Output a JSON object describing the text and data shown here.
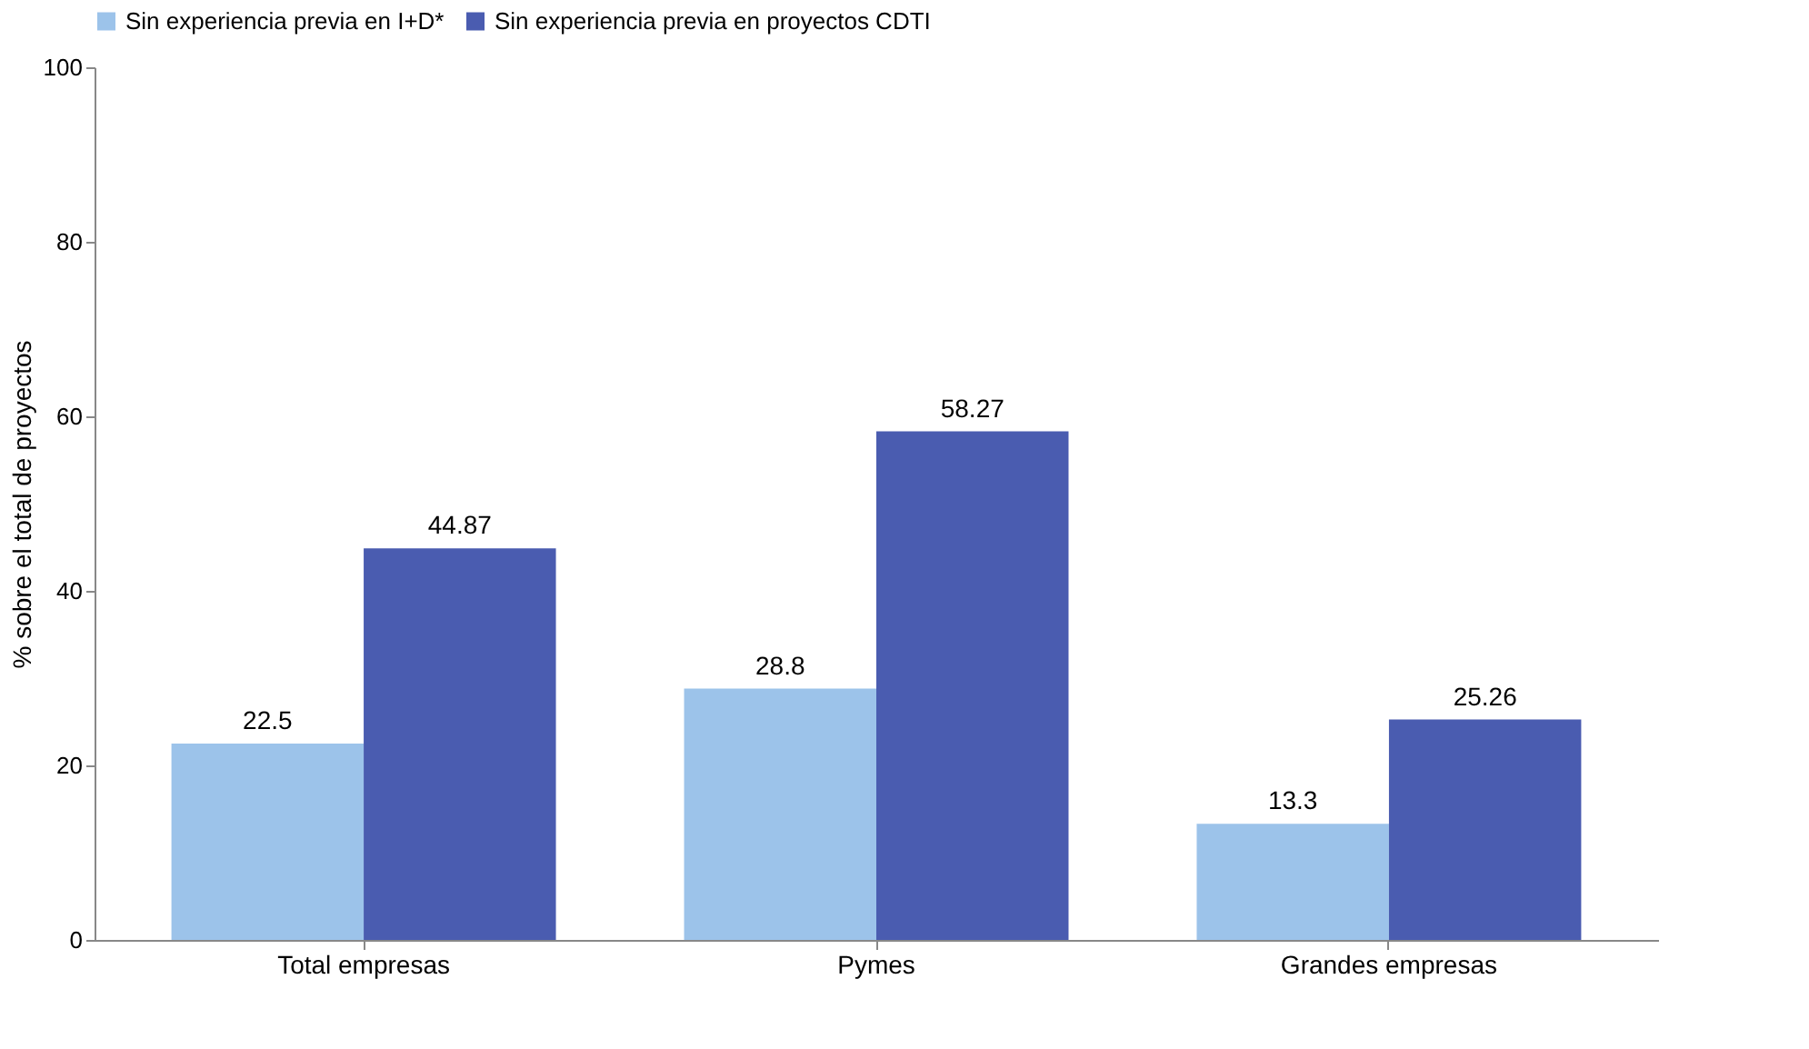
{
  "chart_data": {
    "type": "bar",
    "ylabel": "% sobre el total de proyectos",
    "categories": [
      "Total empresas",
      "Pymes",
      "Grandes empresas"
    ],
    "series": [
      {
        "name": "Sin experiencia previa en I+D*",
        "color": "#9cc3ea",
        "values": [
          22.5,
          28.8,
          13.3
        ]
      },
      {
        "name": "Sin experiencia previa en proyectos CDTI",
        "color": "#4a5cb0",
        "values": [
          44.87,
          58.27,
          25.26
        ]
      }
    ],
    "ylim": [
      0,
      100
    ],
    "yticks": [
      0,
      20,
      40,
      60,
      80,
      100
    ],
    "data_labels": true,
    "legend": "top",
    "grid": false
  }
}
